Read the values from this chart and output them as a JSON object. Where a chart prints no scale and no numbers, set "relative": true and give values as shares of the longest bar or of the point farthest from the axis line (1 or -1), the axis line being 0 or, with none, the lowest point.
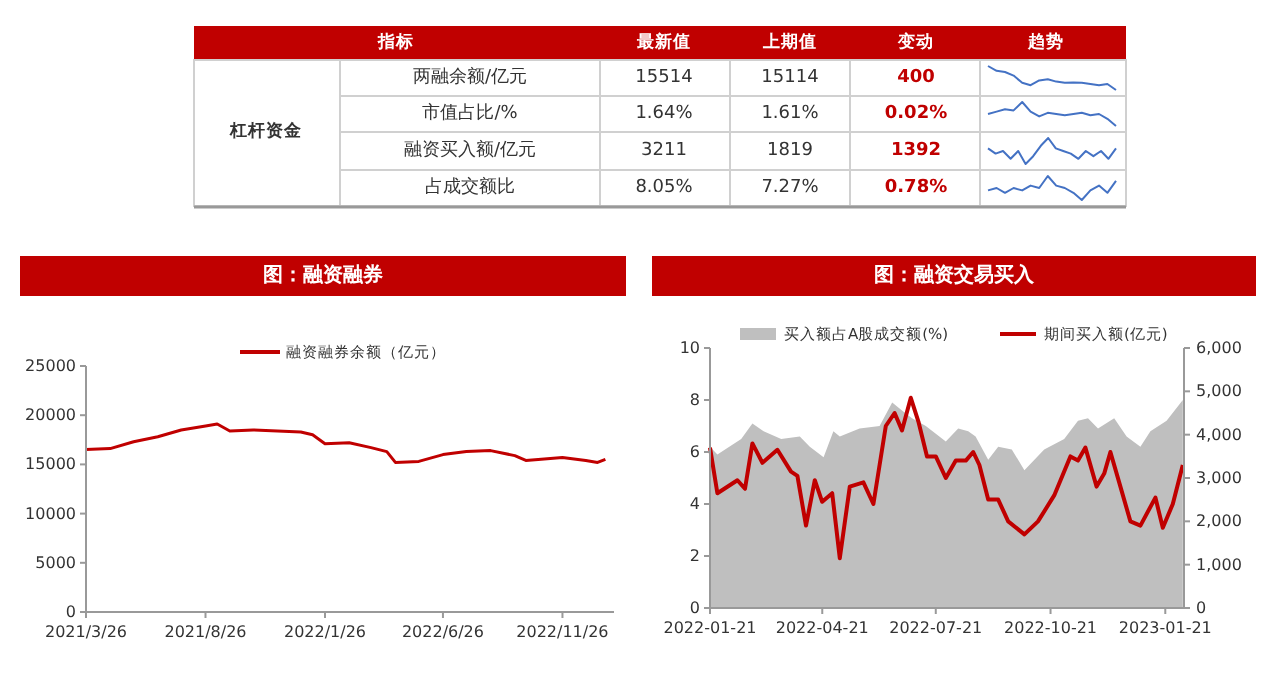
{
  "chart_data": [
    {
      "type": "other",
      "annotations": [
        "指标",
        "最新值",
        "上期值",
        "变动",
        "趋势",
        "杠杆资金",
        "两融余额/亿元",
        "15514",
        "15114",
        "400",
        "市值占比/%",
        "1.64%",
        "1.61%",
        "0.02%",
        "融资买入额/亿元",
        "3211",
        "1819",
        "1392",
        "占成交额比",
        "8.05%",
        "7.27%",
        "0.78%"
      ]
    },
    {
      "type": "line",
      "relative": true,
      "categories": [
        null,
        null,
        null,
        null,
        null,
        null,
        null,
        null,
        null,
        null,
        null,
        null,
        null,
        null,
        null,
        null
      ],
      "color": "#4472c4",
      "values": [
        1,
        0.8,
        0.75,
        0.6,
        0.3,
        0.2,
        0.4,
        0.45,
        0.35,
        0.3,
        0.32,
        0.3,
        0.25,
        0.2,
        0.25,
        0
      ]
    },
    {
      "type": "line",
      "relative": true,
      "categories": [
        null,
        null,
        null,
        null,
        null,
        null,
        null,
        null,
        null,
        null,
        null,
        null,
        null,
        null,
        null,
        null
      ],
      "color": "#4472c4",
      "values": [
        0.5,
        0.6,
        0.7,
        0.65,
        1,
        0.6,
        0.4,
        0.55,
        0.5,
        0.45,
        0.5,
        0.55,
        0.45,
        0.5,
        0.3,
        0
      ]
    },
    {
      "type": "line",
      "relative": true,
      "categories": [
        null,
        null,
        null,
        null,
        null,
        null,
        null,
        null,
        null,
        null,
        null,
        null,
        null,
        null,
        null,
        null,
        null,
        null
      ],
      "color": "#4472c4",
      "values": [
        0.6,
        0.4,
        0.5,
        0.2,
        0.5,
        0,
        0.3,
        0.7,
        1,
        0.6,
        0.5,
        0.4,
        0.2,
        0.5,
        0.3,
        0.5,
        0.2,
        0.6
      ]
    },
    {
      "type": "line",
      "relative": true,
      "categories": [
        null,
        null,
        null,
        null,
        null,
        null,
        null,
        null,
        null,
        null,
        null,
        null,
        null,
        null,
        null,
        null
      ],
      "color": "#4472c4",
      "values": [
        0.4,
        0.5,
        0.3,
        0.5,
        0.4,
        0.6,
        0.5,
        1,
        0.6,
        0.5,
        0.3,
        0,
        0.4,
        0.6,
        0.3,
        0.8
      ]
    },
    {
      "type": "line",
      "title": "图：融资融券",
      "legend": "top",
      "x": [
        "2021-03-26",
        "2021-04-26",
        "2021-05-26",
        "2021-06-26",
        "2021-07-26",
        "2021-08-26",
        "2021-09-10",
        "2021-09-26",
        "2021-10-26",
        "2021-11-26",
        "2021-12-26",
        "2022-01-10",
        "2022-01-26",
        "2022-02-26",
        "2022-03-26",
        "2022-04-15",
        "2022-04-26",
        "2022-05-26",
        "2022-06-26",
        "2022-07-26",
        "2022-08-26",
        "2022-09-26",
        "2022-10-10",
        "2022-10-26",
        "2022-11-26",
        "2022-12-26",
        "2023-01-10",
        "2023-01-20"
      ],
      "series": [
        {
          "name": "融资融券余额（亿元）",
          "color": "#c00000",
          "values": [
            16500,
            16600,
            17300,
            17800,
            18500,
            18900,
            19100,
            18400,
            18500,
            18400,
            18300,
            18000,
            17100,
            17200,
            16700,
            16300,
            15200,
            15300,
            16000,
            16300,
            16400,
            15900,
            15400,
            15500,
            15700,
            15400,
            15200,
            15500
          ]
        }
      ],
      "xlim": [
        "2021-03-26",
        "2023-01-31"
      ],
      "xticks": [
        {
          "value": "2021-03-26",
          "label": "2021/3/26"
        },
        {
          "value": "2021-08-26",
          "label": "2021/8/26"
        },
        {
          "value": "2022-01-26",
          "label": "2022/1/26"
        },
        {
          "value": "2022-06-26",
          "label": "2022/6/26"
        },
        {
          "value": "2022-11-26",
          "label": "2022/11/26"
        }
      ],
      "ylim": [
        0,
        25000
      ],
      "yticks": [
        0,
        5000,
        10000,
        15000,
        20000,
        25000
      ]
    },
    {
      "type": "area",
      "title": "图：融资交易买入",
      "legend": "top",
      "series": [
        {
          "name": "买入额占A股成交额(%)",
          "type": "area",
          "color": "#bfbfbf",
          "x": [
            "2022-01-21",
            "2022-01-27",
            "2022-02-15",
            "2022-02-24",
            "2022-03-05",
            "2022-03-19",
            "2022-04-03",
            "2022-04-11",
            "2022-04-22",
            "2022-04-30",
            "2022-05-05",
            "2022-05-21",
            "2022-06-06",
            "2022-06-16",
            "2022-06-24",
            "2022-07-02",
            "2022-07-13",
            "2022-07-29",
            "2022-08-08",
            "2022-08-16",
            "2022-08-22",
            "2022-09-01",
            "2022-09-09",
            "2022-09-20",
            "2022-09-30",
            "2022-10-16",
            "2022-11-01",
            "2022-11-12",
            "2022-11-20",
            "2022-11-28",
            "2022-12-11",
            "2022-12-21",
            "2023-01-01",
            "2023-01-09",
            "2023-01-22",
            "2023-02-04"
          ],
          "values": [
            6.2,
            5.9,
            6.5,
            7.1,
            6.8,
            6.5,
            6.6,
            6.2,
            5.8,
            6.8,
            6.6,
            6.9,
            7.0,
            7.9,
            7.6,
            7.3,
            7.0,
            6.4,
            6.9,
            6.8,
            6.6,
            5.7,
            6.2,
            6.1,
            5.3,
            6.1,
            6.5,
            7.2,
            7.3,
            6.9,
            7.3,
            6.6,
            6.2,
            6.8,
            7.2,
            8.0
          ]
        },
        {
          "name": "期间买入额(亿元)",
          "type": "line",
          "axis": "y2",
          "color": "#c00000",
          "x": [
            "2022-01-21",
            "2022-01-27",
            "2022-02-12",
            "2022-02-18",
            "2022-02-24",
            "2022-03-04",
            "2022-03-16",
            "2022-03-27",
            "2022-04-01",
            "2022-04-08",
            "2022-04-15",
            "2022-04-21",
            "2022-04-29",
            "2022-05-05",
            "2022-05-13",
            "2022-05-24",
            "2022-06-01",
            "2022-06-11",
            "2022-06-18",
            "2022-06-24",
            "2022-07-01",
            "2022-07-07",
            "2022-07-14",
            "2022-07-21",
            "2022-07-29",
            "2022-08-06",
            "2022-08-14",
            "2022-08-20",
            "2022-08-25",
            "2022-09-01",
            "2022-09-09",
            "2022-09-17",
            "2022-09-30",
            "2022-10-11",
            "2022-10-24",
            "2022-11-06",
            "2022-11-12",
            "2022-11-18",
            "2022-11-27",
            "2022-12-03",
            "2022-12-08",
            "2022-12-16",
            "2022-12-24",
            "2023-01-01",
            "2023-01-13",
            "2023-01-19",
            "2023-01-27",
            "2023-02-04"
          ],
          "values": [
            3700,
            2650,
            2950,
            2750,
            3800,
            3350,
            3650,
            3150,
            3050,
            1900,
            2950,
            2450,
            2650,
            1150,
            2800,
            2900,
            2400,
            4200,
            4500,
            4100,
            4850,
            4300,
            3500,
            3500,
            3000,
            3400,
            3400,
            3600,
            3300,
            2500,
            2500,
            2000,
            1700,
            2000,
            2600,
            3500,
            3400,
            3700,
            2800,
            3100,
            3600,
            2800,
            2000,
            1900,
            2550,
            1850,
            2400,
            3300
          ]
        }
      ],
      "xlim": [
        "2022-01-21",
        "2023-02-05"
      ],
      "xticks": [
        "2022-01-21",
        "2022-04-21",
        "2022-07-21",
        "2022-10-21",
        "2023-01-21"
      ],
      "ylim": [
        0,
        10
      ],
      "yticks": [
        0,
        2,
        4,
        6,
        8,
        10
      ],
      "y2lim": [
        0,
        6000
      ],
      "y2ticks": [
        0,
        {
          "value": 1000,
          "label": "1,000"
        },
        {
          "value": 2000,
          "label": "2,000"
        },
        {
          "value": 3000,
          "label": "3,000"
        },
        {
          "value": 4000,
          "label": "4,000"
        },
        {
          "value": 5000,
          "label": "5,000"
        },
        {
          "value": 6000,
          "label": "6,000"
        }
      ]
    }
  ]
}
